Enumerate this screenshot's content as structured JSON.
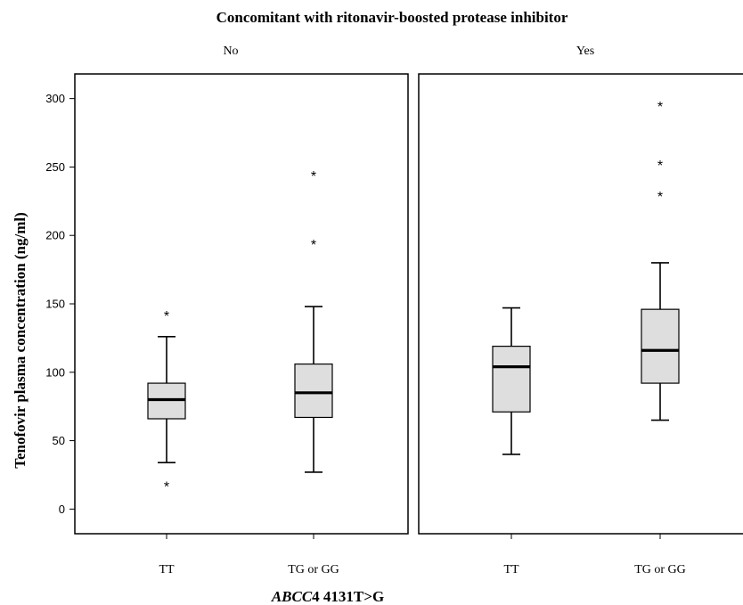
{
  "chart_data": {
    "type": "boxplot",
    "title": "Concomitant with ritonavir-boosted protease inhibitor",
    "ylabel": "Tenofovir plasma concentration (ng/ml)",
    "xlabel_italic": "ABCC",
    "xlabel_rest": "4 4131T>G",
    "ylim": [
      -18,
      318
    ],
    "yticks": [
      0,
      50,
      100,
      150,
      200,
      250,
      300
    ],
    "categories": [
      "TT",
      "TG or GG"
    ],
    "panels": [
      {
        "label": "No",
        "boxes": [
          {
            "category": "TT",
            "whisker_low": 34,
            "q1": 66,
            "median": 80,
            "q3": 92,
            "whisker_high": 126,
            "outliers": [
              143,
              18
            ]
          },
          {
            "category": "TG or GG",
            "whisker_low": 27,
            "q1": 67,
            "median": 85,
            "q3": 106,
            "whisker_high": 148,
            "outliers": [
              195,
              245
            ]
          }
        ]
      },
      {
        "label": "Yes",
        "boxes": [
          {
            "category": "TT",
            "whisker_low": 40,
            "q1": 71,
            "median": 104,
            "q3": 119,
            "whisker_high": 147,
            "outliers": []
          },
          {
            "category": "TG or GG",
            "whisker_low": 65,
            "q1": 92,
            "median": 116,
            "q3": 146,
            "whisker_high": 180,
            "outliers": [
              230,
              253,
              296
            ]
          }
        ]
      }
    ],
    "grid": false,
    "colors": {
      "box_fill": "#dedede",
      "stroke": "#000000",
      "background": "#ffffff"
    }
  }
}
